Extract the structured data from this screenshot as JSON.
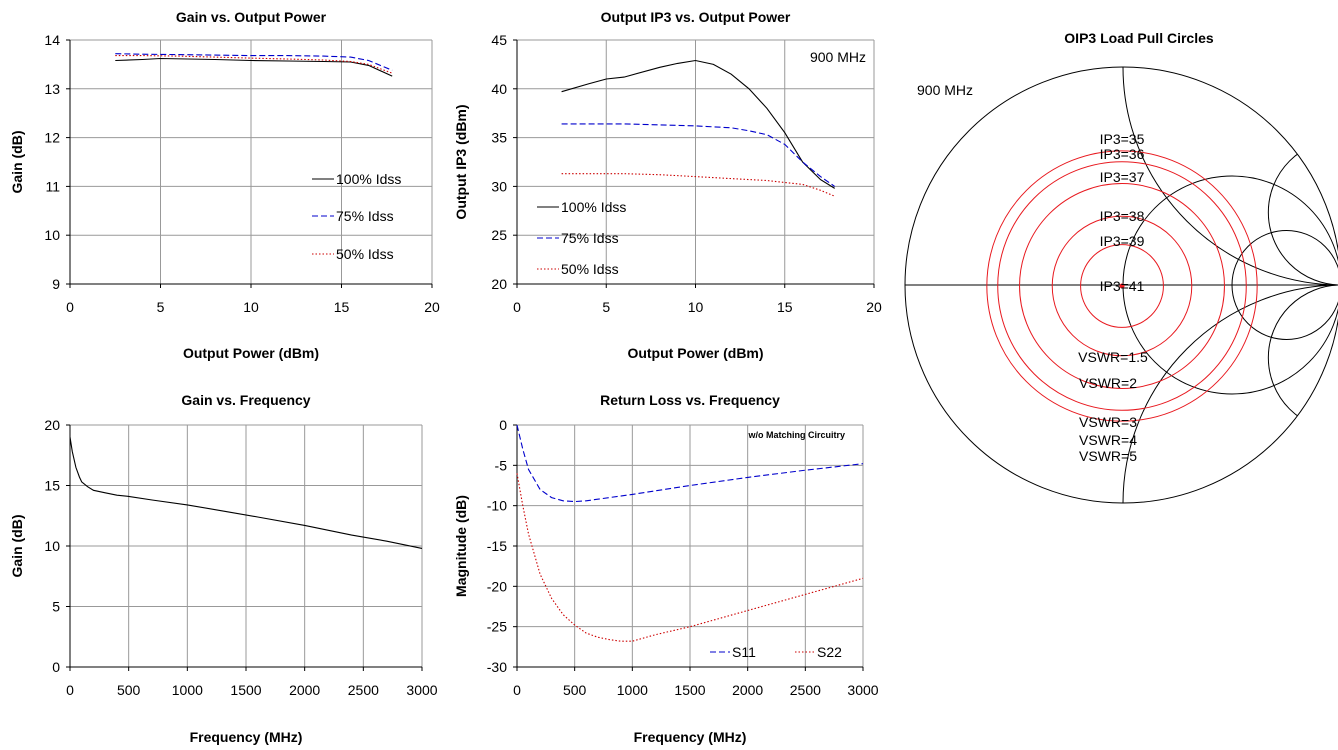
{
  "chart_data": [
    {
      "type": "line",
      "title": "Gain vs. Output Power",
      "xlabel": "Output  Power (dBm)",
      "ylabel": "Gain (dB)",
      "xlim": [
        0,
        20
      ],
      "ylim": [
        9,
        14
      ],
      "xticks": [
        "0",
        "5",
        "10",
        "15",
        "20"
      ],
      "yticks": [
        "9",
        "10",
        "11",
        "12",
        "13",
        "14"
      ],
      "grid": true,
      "legend_position": "bottom-right",
      "series": [
        {
          "name": "100% Idss",
          "color": "#000000",
          "dash": "solid",
          "x": [
            2.5,
            4,
            5,
            8,
            10,
            12,
            14,
            15.5,
            16.5,
            17.8
          ],
          "y": [
            13.58,
            13.6,
            13.62,
            13.6,
            13.58,
            13.57,
            13.56,
            13.55,
            13.48,
            13.26
          ]
        },
        {
          "name": "75% Idss",
          "color": "#0000cc",
          "dash": "dash",
          "x": [
            2.5,
            4,
            6,
            8,
            10,
            12,
            14,
            15.5,
            16.5,
            17.8
          ],
          "y": [
            13.72,
            13.71,
            13.7,
            13.69,
            13.68,
            13.68,
            13.67,
            13.65,
            13.58,
            13.38
          ]
        },
        {
          "name": "50% Idss",
          "color": "#cc0000",
          "dash": "dot",
          "x": [
            2.5,
            4,
            6,
            8,
            10,
            12,
            14,
            15.5,
            16.5,
            17.8
          ],
          "y": [
            13.68,
            13.68,
            13.67,
            13.65,
            13.63,
            13.61,
            13.59,
            13.56,
            13.5,
            13.32
          ]
        }
      ]
    },
    {
      "type": "line",
      "title": "Output IP3 vs. Output Power",
      "xlabel": "Output  Power (dBm)",
      "ylabel": "Output IP3 (dBm)",
      "xlim": [
        0,
        20
      ],
      "ylim": [
        20,
        45
      ],
      "xticks": [
        "0",
        "5",
        "10",
        "15",
        "20"
      ],
      "yticks": [
        "20",
        "25",
        "30",
        "35",
        "40",
        "45"
      ],
      "grid": true,
      "annotation": "900 MHz",
      "legend_position": "bottom-left",
      "series": [
        {
          "name": "100% Idss",
          "color": "#000000",
          "dash": "solid",
          "x": [
            2.5,
            4,
            5,
            6,
            8,
            9,
            10,
            11,
            12,
            13,
            14,
            15,
            16,
            17,
            17.8
          ],
          "y": [
            39.7,
            40.5,
            41,
            41.2,
            42.2,
            42.6,
            42.9,
            42.5,
            41.5,
            40,
            38,
            35.5,
            32.5,
            30.7,
            29.8
          ]
        },
        {
          "name": "75% Idss",
          "color": "#0000cc",
          "dash": "dash",
          "x": [
            2.5,
            4,
            6,
            8,
            10,
            12,
            13,
            14,
            15,
            16,
            17,
            17.8
          ],
          "y": [
            36.4,
            36.4,
            36.4,
            36.3,
            36.2,
            36,
            35.7,
            35.3,
            34.3,
            32.5,
            31,
            30
          ]
        },
        {
          "name": "50% Idss",
          "color": "#cc0000",
          "dash": "dot",
          "x": [
            2.5,
            4,
            6,
            8,
            10,
            12,
            14,
            15,
            16,
            17,
            17.8
          ],
          "y": [
            31.3,
            31.3,
            31.3,
            31.2,
            31,
            30.8,
            30.6,
            30.4,
            30.2,
            29.6,
            29
          ]
        }
      ]
    },
    {
      "type": "line",
      "title": "Gain vs. Frequency",
      "xlabel": "Frequency (MHz)",
      "ylabel": "Gain (dB)",
      "xlim": [
        0,
        3000
      ],
      "ylim": [
        0,
        20
      ],
      "xticks": [
        "0",
        "500",
        "1000",
        "1500",
        "2000",
        "2500",
        "3000"
      ],
      "yticks": [
        "0",
        "5",
        "10",
        "15",
        "20"
      ],
      "grid": true,
      "series": [
        {
          "name": "",
          "color": "#000000",
          "dash": "solid",
          "x": [
            0,
            20,
            50,
            80,
            100,
            150,
            200,
            300,
            400,
            500,
            700,
            1000,
            1300,
            1600,
            2000,
            2400,
            2700,
            3000
          ],
          "y": [
            19,
            17.8,
            16.5,
            15.7,
            15.3,
            14.9,
            14.6,
            14.4,
            14.2,
            14.1,
            13.8,
            13.4,
            12.9,
            12.4,
            11.7,
            10.9,
            10.4,
            9.8
          ]
        }
      ]
    },
    {
      "type": "line",
      "title": "Return Loss vs. Frequency",
      "xlabel": "Frequency (MHz)",
      "ylabel": "Magnitude (dB)",
      "xlim": [
        0,
        3000
      ],
      "ylim": [
        -30,
        0
      ],
      "xticks": [
        "0",
        "500",
        "1000",
        "1500",
        "2000",
        "2500",
        "3000"
      ],
      "yticks": [
        "-30",
        "-25",
        "-20",
        "-15",
        "-10",
        "-5",
        "0"
      ],
      "grid": true,
      "annotation": "w/o Matching Circuitry",
      "legend_position": "bottom-right",
      "series": [
        {
          "name": "S11",
          "color": "#0000cc",
          "dash": "dash",
          "x": [
            0,
            50,
            100,
            200,
            300,
            400,
            500,
            600,
            700,
            1000,
            1500,
            2000,
            2500,
            3000
          ],
          "y": [
            0,
            -3,
            -5.5,
            -8,
            -9,
            -9.4,
            -9.5,
            -9.4,
            -9.2,
            -8.6,
            -7.5,
            -6.5,
            -5.6,
            -4.8
          ]
        },
        {
          "name": "S22",
          "color": "#cc0000",
          "dash": "dot",
          "x": [
            0,
            50,
            100,
            150,
            200,
            300,
            400,
            500,
            600,
            700,
            800,
            900,
            1000,
            1200,
            1500,
            2000,
            2500,
            3000
          ],
          "y": [
            -6,
            -10,
            -13.5,
            -16,
            -18.5,
            -21.5,
            -23.5,
            -24.8,
            -25.8,
            -26.3,
            -26.6,
            -26.8,
            -26.8,
            -26,
            -25,
            -23,
            -21,
            -19
          ]
        }
      ]
    },
    {
      "type": "other",
      "title": "OIP3 Load Pull Circles",
      "annotation": "900 MHz",
      "ip3_circles": [
        {
          "label": "IP3=35",
          "radius": 0.62
        },
        {
          "label": "IP3=36",
          "radius": 0.57
        },
        {
          "label": "IP3=37",
          "radius": 0.47
        },
        {
          "label": "IP3=38",
          "radius": 0.32
        },
        {
          "label": "IP3=39",
          "radius": 0.19
        },
        {
          "label": "IP3=41",
          "radius": 0.0
        }
      ],
      "vswr_labels": [
        "VSWR=1.5",
        "VSWR=2",
        "VSWR=3",
        "VSWR=4",
        "VSWR=5"
      ]
    }
  ]
}
